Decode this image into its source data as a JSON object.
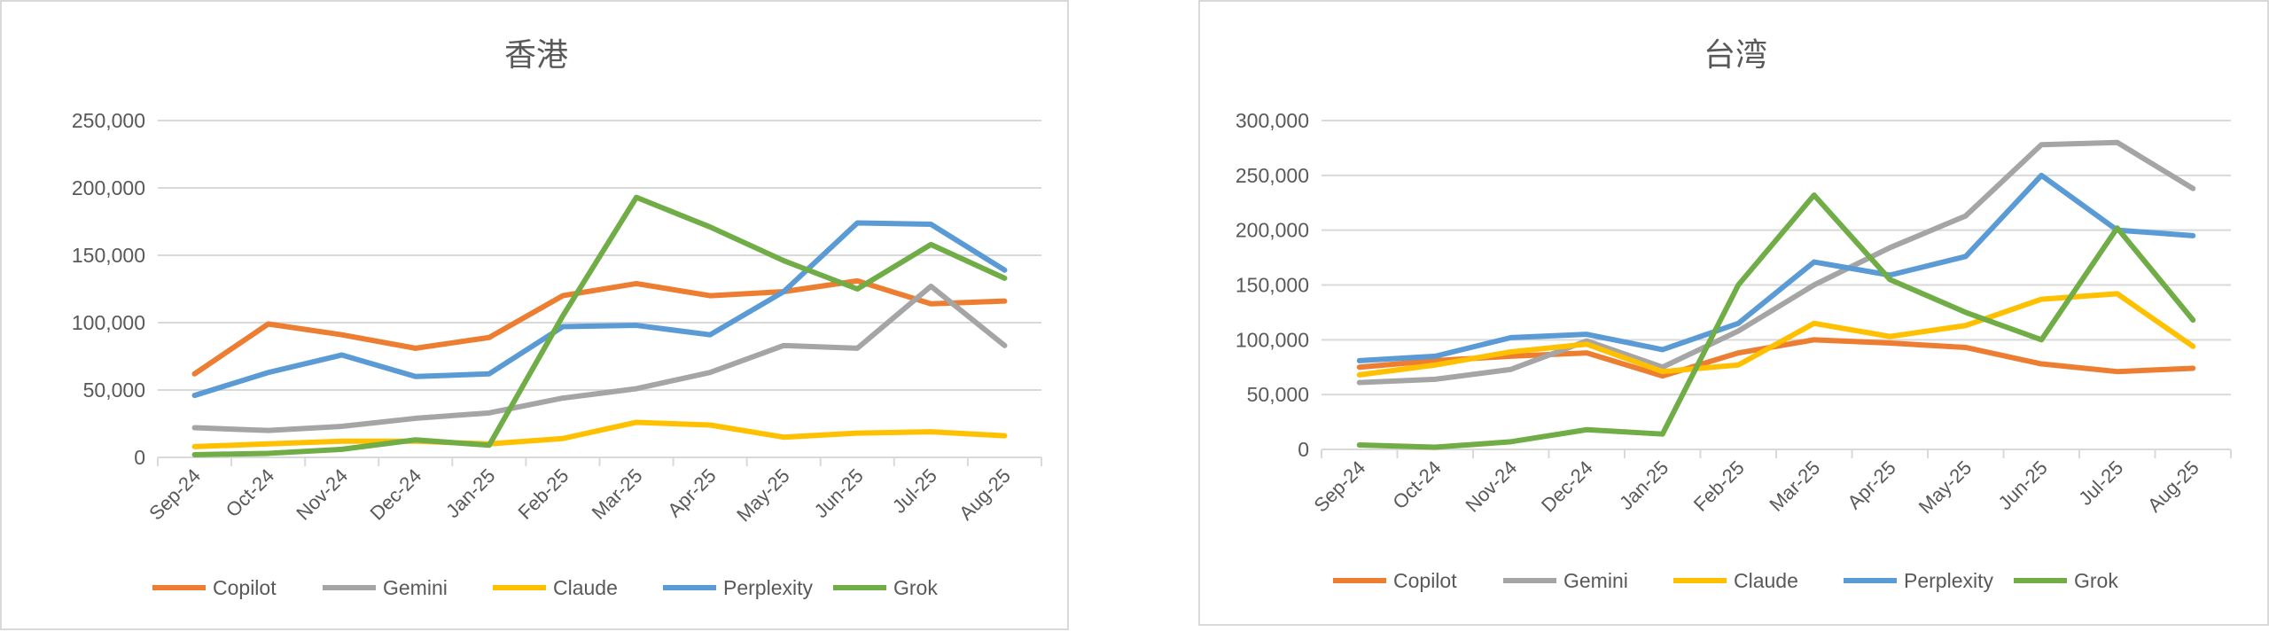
{
  "chart_data": [
    {
      "type": "line",
      "title": "香港",
      "xlabel": "",
      "ylabel": "",
      "ylim": [
        0,
        250000
      ],
      "yticks": [
        0,
        50000,
        100000,
        150000,
        200000,
        250000
      ],
      "ytick_labels": [
        "0",
        "50,000",
        "100,000",
        "150,000",
        "200,000",
        "250,000"
      ],
      "grid": true,
      "legend": "bottom",
      "categories": [
        "Sep-24",
        "Oct-24",
        "Nov-24",
        "Dec-24",
        "Jan-25",
        "Feb-25",
        "Mar-25",
        "Apr-25",
        "May-25",
        "Jun-25",
        "Jul-25",
        "Aug-25"
      ],
      "series": [
        {
          "name": "Copilot",
          "color": "#ED7D31",
          "values": [
            62000,
            99000,
            91000,
            81000,
            89000,
            120000,
            129000,
            120000,
            123000,
            131000,
            114000,
            116000
          ]
        },
        {
          "name": "Gemini",
          "color": "#A5A5A5",
          "values": [
            22000,
            20000,
            23000,
            29000,
            33000,
            44000,
            51000,
            63000,
            83000,
            81000,
            127000,
            83000
          ]
        },
        {
          "name": "Claude",
          "color": "#FFC000",
          "values": [
            8000,
            10000,
            12000,
            12000,
            10000,
            14000,
            26000,
            24000,
            15000,
            18000,
            19000,
            16000
          ]
        },
        {
          "name": "Perplexity",
          "color": "#5B9BD5",
          "values": [
            46000,
            63000,
            76000,
            60000,
            62000,
            97000,
            98000,
            91000,
            123000,
            174000,
            173000,
            139000
          ]
        },
        {
          "name": "Grok",
          "color": "#70AD47",
          "values": [
            2000,
            3000,
            6000,
            13000,
            9000,
            105000,
            193000,
            171000,
            146000,
            125000,
            158000,
            133000
          ]
        }
      ]
    },
    {
      "type": "line",
      "title": "台湾",
      "xlabel": "",
      "ylabel": "",
      "ylim": [
        0,
        300000
      ],
      "yticks": [
        0,
        50000,
        100000,
        150000,
        200000,
        250000,
        300000
      ],
      "ytick_labels": [
        "0",
        "50,000",
        "100,000",
        "150,000",
        "200,000",
        "250,000",
        "300,000"
      ],
      "grid": true,
      "legend": "bottom",
      "categories": [
        "Sep-24",
        "Oct-24",
        "Nov-24",
        "Dec-24",
        "Jan-25",
        "Feb-25",
        "Mar-25",
        "Apr-25",
        "May-25",
        "Jun-25",
        "Jul-25",
        "Aug-25"
      ],
      "series": [
        {
          "name": "Copilot",
          "color": "#ED7D31",
          "values": [
            75000,
            81000,
            85000,
            88000,
            67000,
            88000,
            100000,
            97000,
            93000,
            78000,
            71000,
            74000
          ]
        },
        {
          "name": "Gemini",
          "color": "#A5A5A5",
          "values": [
            61000,
            64000,
            73000,
            99000,
            75000,
            108000,
            150000,
            184000,
            213000,
            278000,
            280000,
            238000
          ]
        },
        {
          "name": "Claude",
          "color": "#FFC000",
          "values": [
            68000,
            77000,
            89000,
            96000,
            71000,
            77000,
            115000,
            103000,
            113000,
            137000,
            142000,
            94000
          ]
        },
        {
          "name": "Perplexity",
          "color": "#5B9BD5",
          "values": [
            81000,
            85000,
            102000,
            105000,
            91000,
            115000,
            171000,
            159000,
            176000,
            250000,
            200000,
            195000
          ]
        },
        {
          "name": "Grok",
          "color": "#70AD47",
          "values": [
            4000,
            2000,
            7000,
            18000,
            14000,
            150000,
            232000,
            155000,
            125000,
            100000,
            202000,
            118000
          ]
        }
      ]
    }
  ]
}
